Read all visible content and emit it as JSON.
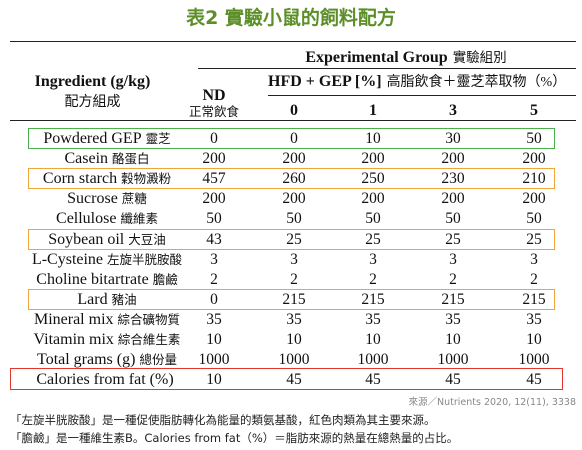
{
  "chart_data": {
    "type": "table",
    "title": "表2 實驗小鼠的飼料配方",
    "row_header": {
      "en": "Ingredient (g/kg)",
      "zh": "配方組成"
    },
    "group_header": {
      "en": "Experimental Group",
      "zh": "實驗組別"
    },
    "control_header": {
      "en": "ND",
      "zh": "正常飲食"
    },
    "treatment_header": {
      "en": "HFD + GEP [%]",
      "zh": "高脂飲食＋靈芝萃取物",
      "unit": "（%）"
    },
    "levels": [
      "0",
      "1",
      "3",
      "5"
    ],
    "rows": [
      {
        "en": "Powdered GEP",
        "zh": "靈芝",
        "values": [
          0,
          0,
          10,
          30,
          50
        ],
        "highlight": "green"
      },
      {
        "en": "Casein",
        "zh": "酪蛋白",
        "values": [
          200,
          200,
          200,
          200,
          200
        ]
      },
      {
        "en": "Corn starch",
        "zh": "穀物澱粉",
        "values": [
          457,
          260,
          250,
          230,
          210
        ],
        "highlight": "orange"
      },
      {
        "en": "Sucrose",
        "zh": "蔗糖",
        "values": [
          200,
          200,
          200,
          200,
          200
        ]
      },
      {
        "en": "Cellulose",
        "zh": "纖維素",
        "values": [
          50,
          50,
          50,
          50,
          50
        ]
      },
      {
        "en": "Soybean oil",
        "zh": "大豆油",
        "values": [
          43,
          25,
          25,
          25,
          25
        ],
        "highlight": "orange"
      },
      {
        "en": "L-Cysteine",
        "zh": "左旋半胱胺酸",
        "values": [
          3,
          3,
          3,
          3,
          3
        ]
      },
      {
        "en": "Choline bitartrate",
        "zh": "膽鹼",
        "values": [
          2,
          2,
          2,
          2,
          2
        ]
      },
      {
        "en": "Lard",
        "zh": "豬油",
        "values": [
          0,
          215,
          215,
          215,
          215
        ],
        "highlight": "orange"
      },
      {
        "en": "Mineral mix",
        "zh": "綜合礦物質",
        "values": [
          35,
          35,
          35,
          35,
          35
        ]
      },
      {
        "en": "Vitamin mix",
        "zh": "綜合維生素",
        "values": [
          10,
          10,
          10,
          10,
          10
        ]
      },
      {
        "en": "Total grams (g)",
        "zh": "總份量",
        "values": [
          1000,
          1000,
          1000,
          1000,
          1000
        ]
      },
      {
        "en": "Calories from fat (%)",
        "zh": "",
        "values": [
          10,
          45,
          45,
          45,
          45
        ],
        "highlight": "red"
      }
    ]
  },
  "source": "來源／Nutrients 2020, 12(11), 3338",
  "notes": [
    "「左旋半胱胺酸」是一種促使脂肪轉化為能量的類氨基酸，紅色肉類為其主要來源。",
    "「膽鹼」是一種維生素B。Calories from fat（%）＝脂肪來源的熱量在總熱量的占比。"
  ],
  "colors": {
    "title": "#5d8f29",
    "green": "#4cae4c",
    "orange": "#f0a53a",
    "red": "#e2372f"
  }
}
